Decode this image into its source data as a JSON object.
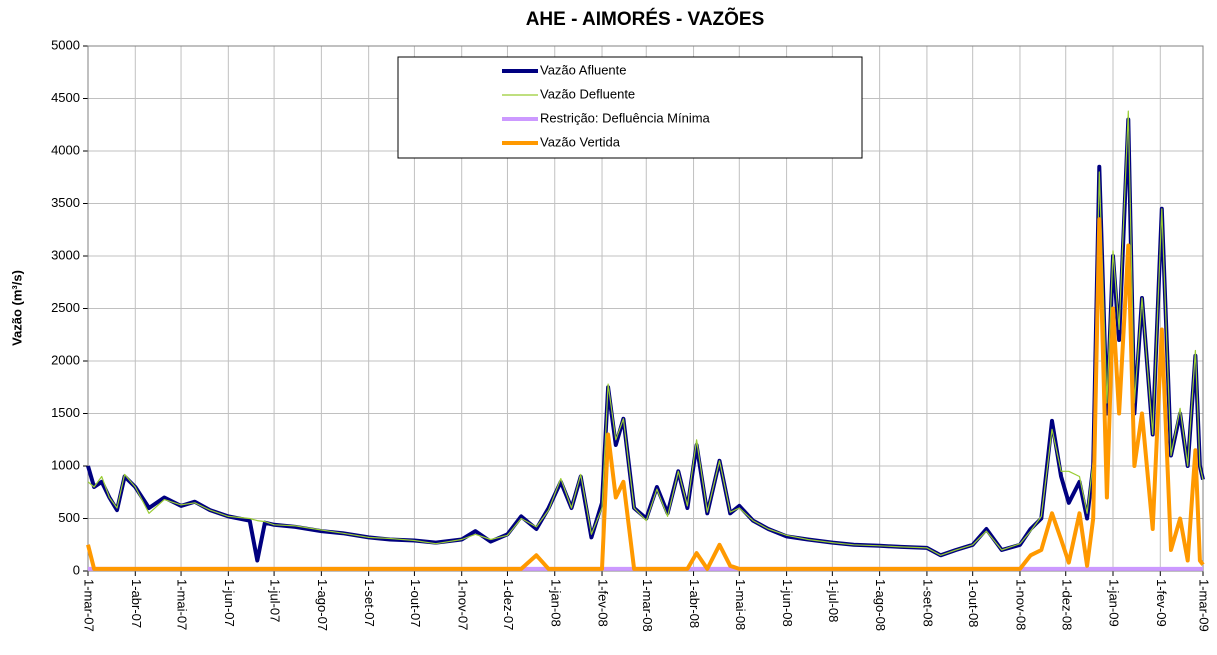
{
  "chart_data": {
    "type": "line",
    "title": "AHE - AIMORÉS - VAZÕES",
    "y_label": "Vazão (m³/s)",
    "legend": "top",
    "grid": true,
    "ylim": [
      0,
      5000
    ],
    "yticks": [
      0,
      500,
      1000,
      1500,
      2000,
      2500,
      3000,
      3500,
      4000,
      4500,
      5000
    ],
    "xlim": [
      "2007-03-01",
      "2009-03-01"
    ],
    "xticks": [
      {
        "value": "2007-03-01",
        "label": "1-mar-07"
      },
      {
        "value": "2007-04-01",
        "label": "1-abr-07"
      },
      {
        "value": "2007-05-01",
        "label": "1-mai-07"
      },
      {
        "value": "2007-06-01",
        "label": "1-jun-07"
      },
      {
        "value": "2007-07-01",
        "label": "1-jul-07"
      },
      {
        "value": "2007-08-01",
        "label": "1-ago-07"
      },
      {
        "value": "2007-09-01",
        "label": "1-set-07"
      },
      {
        "value": "2007-10-01",
        "label": "1-out-07"
      },
      {
        "value": "2007-11-01",
        "label": "1-nov-07"
      },
      {
        "value": "2007-12-01",
        "label": "1-dez-07"
      },
      {
        "value": "2008-01-01",
        "label": "1-jan-08"
      },
      {
        "value": "2008-02-01",
        "label": "1-fev-08"
      },
      {
        "value": "2008-03-01",
        "label": "1-mar-08"
      },
      {
        "value": "2008-04-01",
        "label": "1-abr-08"
      },
      {
        "value": "2008-05-01",
        "label": "1-mai-08"
      },
      {
        "value": "2008-06-01",
        "label": "1-jun-08"
      },
      {
        "value": "2008-07-01",
        "label": "1-jul-08"
      },
      {
        "value": "2008-08-01",
        "label": "1-ago-08"
      },
      {
        "value": "2008-09-01",
        "label": "1-set-08"
      },
      {
        "value": "2008-10-01",
        "label": "1-out-08"
      },
      {
        "value": "2008-11-01",
        "label": "1-nov-08"
      },
      {
        "value": "2008-12-01",
        "label": "1-dez-08"
      },
      {
        "value": "2009-01-01",
        "label": "1-jan-09"
      },
      {
        "value": "2009-02-01",
        "label": "1-fev-09"
      },
      {
        "value": "2009-03-01",
        "label": "1-mar-09"
      }
    ],
    "x": [
      "2007-03-01",
      "2007-03-05",
      "2007-03-10",
      "2007-03-15",
      "2007-03-20",
      "2007-03-25",
      "2007-04-01",
      "2007-04-10",
      "2007-04-20",
      "2007-05-01",
      "2007-05-10",
      "2007-05-20",
      "2007-06-01",
      "2007-06-15",
      "2007-06-20",
      "2007-06-25",
      "2007-07-01",
      "2007-07-15",
      "2007-08-01",
      "2007-08-15",
      "2007-09-01",
      "2007-09-15",
      "2007-10-01",
      "2007-10-15",
      "2007-11-01",
      "2007-11-10",
      "2007-11-20",
      "2007-12-01",
      "2007-12-10",
      "2007-12-20",
      "2007-12-28",
      "2008-01-05",
      "2008-01-12",
      "2008-01-18",
      "2008-01-25",
      "2008-02-01",
      "2008-02-05",
      "2008-02-10",
      "2008-02-15",
      "2008-02-22",
      "2008-03-01",
      "2008-03-08",
      "2008-03-15",
      "2008-03-22",
      "2008-03-28",
      "2008-04-03",
      "2008-04-10",
      "2008-04-18",
      "2008-04-25",
      "2008-05-01",
      "2008-05-10",
      "2008-05-20",
      "2008-06-01",
      "2008-06-15",
      "2008-07-01",
      "2008-07-15",
      "2008-08-01",
      "2008-08-15",
      "2008-09-01",
      "2008-09-10",
      "2008-09-20",
      "2008-10-01",
      "2008-10-10",
      "2008-10-20",
      "2008-11-01",
      "2008-11-08",
      "2008-11-15",
      "2008-11-22",
      "2008-11-28",
      "2008-12-03",
      "2008-12-10",
      "2008-12-15",
      "2008-12-19",
      "2008-12-23",
      "2008-12-28",
      "2009-01-01",
      "2009-01-05",
      "2009-01-11",
      "2009-01-15",
      "2009-01-20",
      "2009-01-27",
      "2009-02-02",
      "2009-02-08",
      "2009-02-14",
      "2009-02-19",
      "2009-02-24",
      "2009-02-27",
      "2009-03-01"
    ],
    "series": [
      {
        "name": "Vazão Afluente",
        "color": "#000080",
        "width": 4,
        "values": [
          1000,
          800,
          850,
          700,
          580,
          900,
          800,
          600,
          700,
          620,
          660,
          580,
          520,
          480,
          100,
          460,
          440,
          420,
          380,
          360,
          320,
          300,
          290,
          270,
          300,
          380,
          280,
          350,
          520,
          400,
          600,
          850,
          600,
          900,
          320,
          650,
          1750,
          1200,
          1450,
          600,
          500,
          800,
          550,
          950,
          600,
          1200,
          550,
          1050,
          550,
          620,
          480,
          400,
          330,
          300,
          270,
          250,
          240,
          230,
          220,
          150,
          200,
          250,
          400,
          200,
          250,
          400,
          500,
          1430,
          900,
          650,
          850,
          500,
          1000,
          3850,
          1500,
          3000,
          2200,
          4300,
          1500,
          2600,
          1300,
          3450,
          1100,
          1500,
          1000,
          2050,
          1000,
          870
        ]
      },
      {
        "name": "Vazão Defluente",
        "color": "#99cc33",
        "width": 1.2,
        "values": [
          850,
          800,
          900,
          700,
          600,
          920,
          800,
          550,
          680,
          630,
          650,
          580,
          520,
          500,
          480,
          470,
          440,
          430,
          390,
          360,
          320,
          310,
          290,
          260,
          300,
          350,
          300,
          340,
          500,
          420,
          580,
          880,
          600,
          920,
          350,
          600,
          1780,
          1250,
          1450,
          600,
          480,
          780,
          520,
          950,
          620,
          1250,
          560,
          1050,
          560,
          600,
          480,
          400,
          340,
          300,
          270,
          250,
          240,
          230,
          220,
          150,
          200,
          250,
          380,
          200,
          260,
          380,
          520,
          1350,
          950,
          950,
          900,
          550,
          1050,
          3800,
          1600,
          3050,
          2300,
          4380,
          1600,
          2600,
          1300,
          3450,
          1100,
          1550,
          1000,
          2100,
          1000,
          870
        ]
      },
      {
        "name": "Restrição: Defluência Mínima",
        "color": "#cc99ff",
        "width": 4,
        "values": [
          20,
          20,
          20,
          20,
          20,
          20,
          20,
          20,
          20,
          20,
          20,
          20,
          20,
          20,
          20,
          20,
          20,
          20,
          20,
          20,
          20,
          20,
          20,
          20,
          20,
          20,
          20,
          20,
          20,
          20,
          20,
          20,
          20,
          20,
          20,
          20,
          20,
          20,
          20,
          20,
          20,
          20,
          20,
          20,
          20,
          20,
          20,
          20,
          20,
          20,
          20,
          20,
          20,
          20,
          20,
          20,
          20,
          20,
          20,
          20,
          20,
          20,
          20,
          20,
          20,
          20,
          20,
          20,
          20,
          20,
          20,
          20,
          20,
          20,
          20,
          20,
          20,
          20,
          20,
          20,
          20,
          20,
          20,
          20,
          20,
          20,
          20,
          20
        ]
      },
      {
        "name": "Vazão Vertida",
        "color": "#ff9900",
        "width": 4,
        "values": [
          250,
          20,
          20,
          20,
          20,
          20,
          20,
          20,
          20,
          20,
          20,
          20,
          20,
          20,
          20,
          20,
          20,
          20,
          20,
          20,
          20,
          20,
          20,
          20,
          20,
          20,
          20,
          20,
          20,
          150,
          20,
          20,
          20,
          20,
          20,
          20,
          1300,
          700,
          850,
          20,
          20,
          20,
          20,
          20,
          20,
          170,
          20,
          250,
          50,
          20,
          20,
          20,
          20,
          20,
          20,
          20,
          20,
          20,
          20,
          20,
          20,
          20,
          20,
          20,
          20,
          150,
          200,
          550,
          300,
          80,
          550,
          50,
          500,
          3350,
          700,
          2500,
          1500,
          3100,
          1000,
          1500,
          400,
          2300,
          200,
          500,
          100,
          1150,
          100,
          60
        ]
      }
    ]
  }
}
